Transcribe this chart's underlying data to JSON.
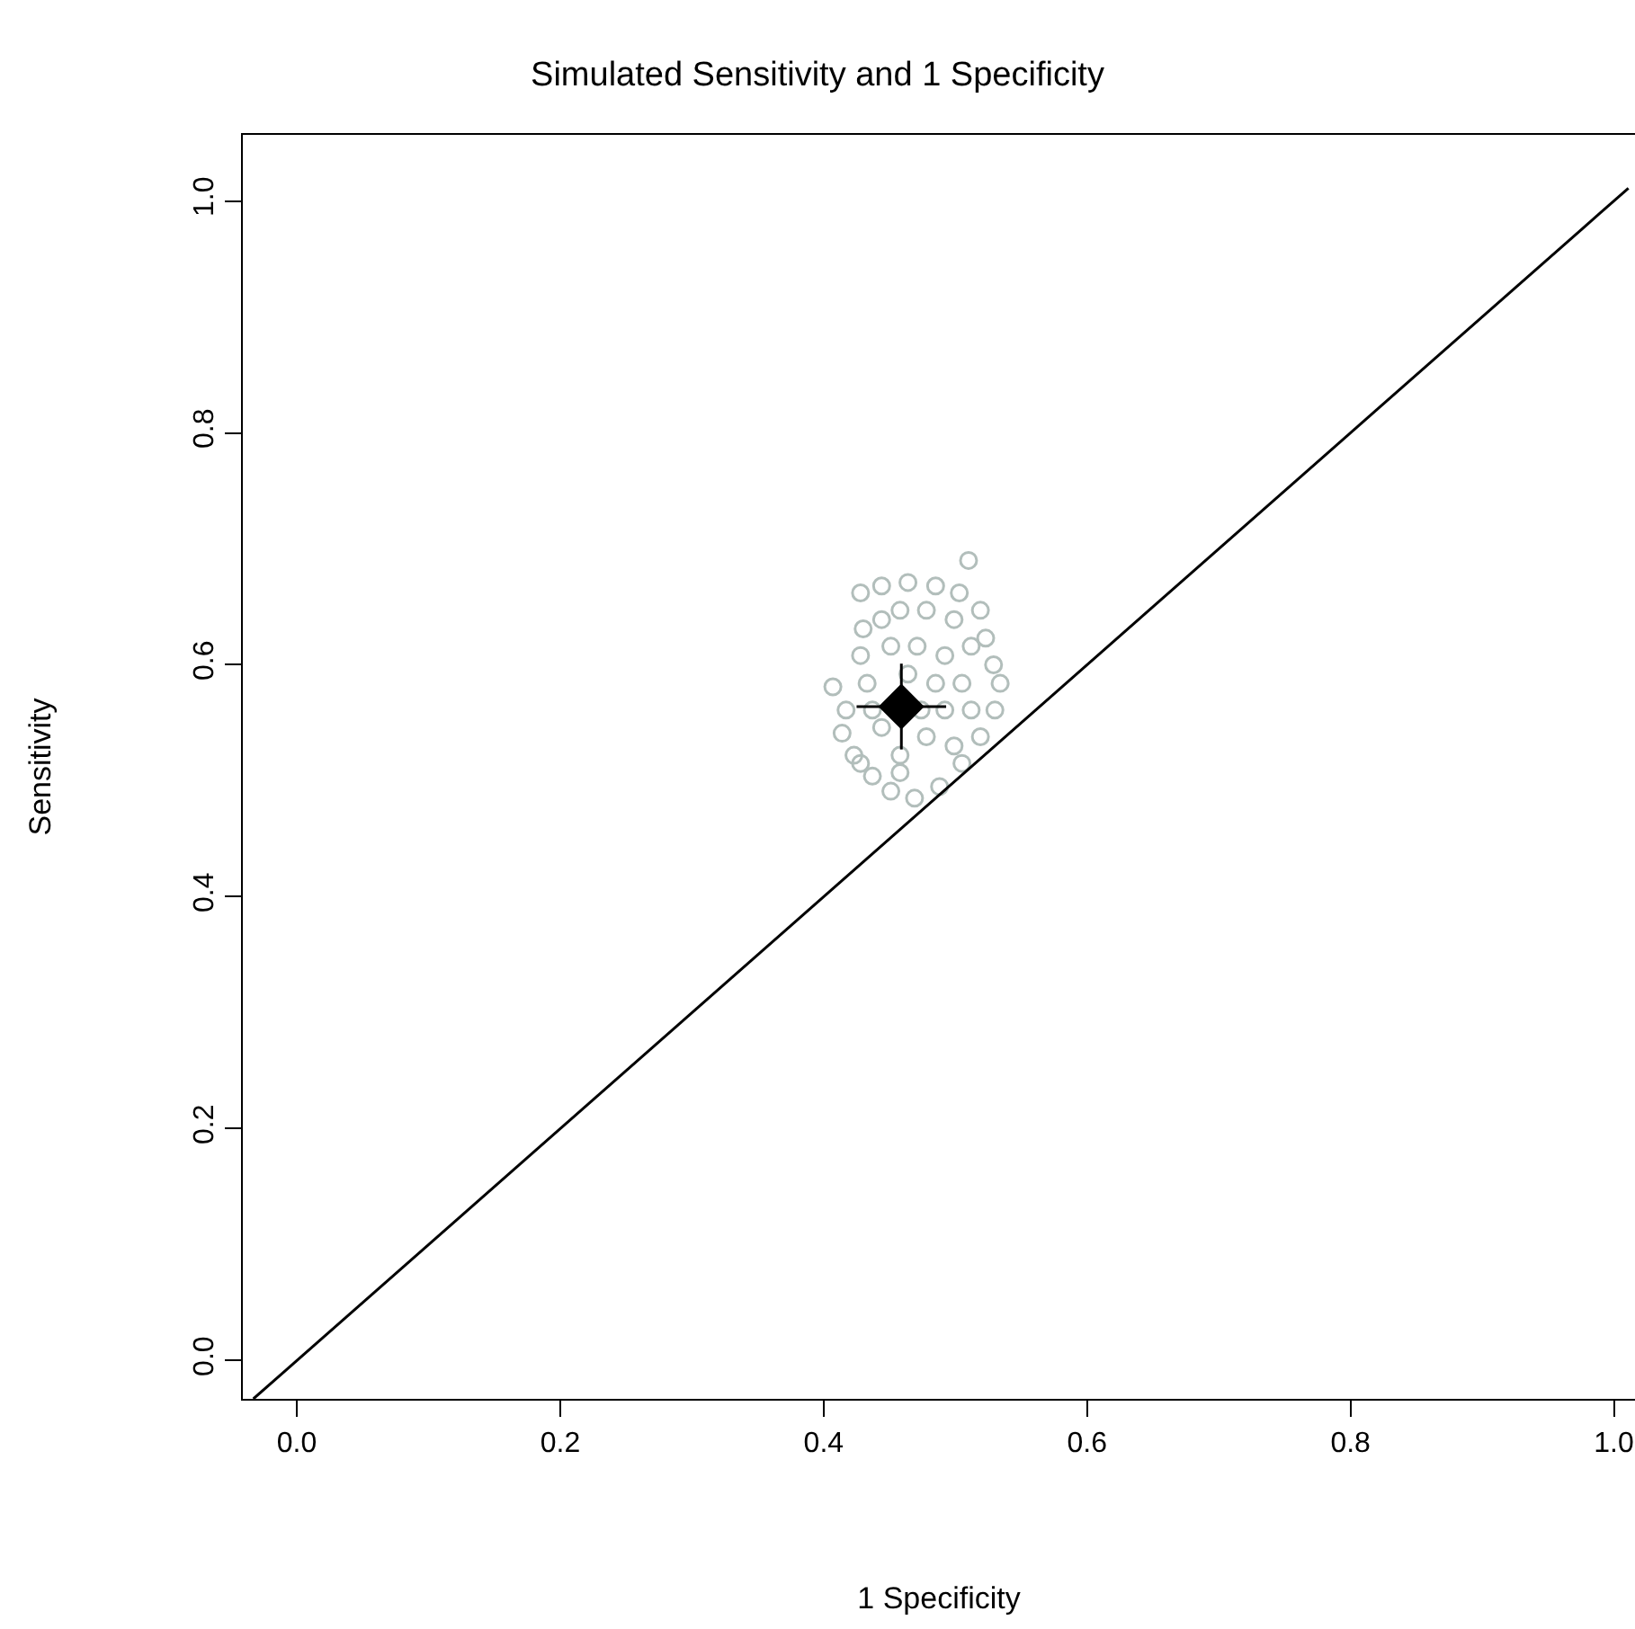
{
  "chart_data": {
    "type": "scatter",
    "title": "Simulated Sensitivity and 1 Specificity",
    "xlabel": "1 Specificity",
    "ylabel": "Sensitivity",
    "xlim": [
      -0.041,
      1.016
    ],
    "ylim": [
      -0.033,
      1.057
    ],
    "xticks": [
      {
        "value": 0,
        "label": "0.0"
      },
      {
        "value": 0.2,
        "label": "0.2"
      },
      {
        "value": 0.4,
        "label": "0.4"
      },
      {
        "value": 0.6,
        "label": "0.6"
      },
      {
        "value": 0.8,
        "label": "0.8"
      },
      {
        "value": 1.0,
        "label": "1.0"
      }
    ],
    "yticks": [
      {
        "value": 0,
        "label": "0.0"
      },
      {
        "value": 0.2,
        "label": "0.2"
      },
      {
        "value": 0.4,
        "label": "0.4"
      },
      {
        "value": 0.6,
        "label": "0.6"
      },
      {
        "value": 0.8,
        "label": "0.8"
      },
      {
        "value": 1.0,
        "label": "1.0"
      }
    ],
    "series": [
      {
        "marker": "circle",
        "color": "#b2bebb",
        "x": [
          0.51,
          0.428,
          0.444,
          0.464,
          0.485,
          0.503,
          0.519,
          0.523,
          0.529,
          0.534,
          0.53,
          0.519,
          0.505,
          0.488,
          0.469,
          0.451,
          0.437,
          0.423,
          0.414,
          0.407,
          0.417,
          0.43,
          0.428,
          0.433,
          0.444,
          0.458,
          0.478,
          0.499,
          0.512,
          0.505,
          0.492,
          0.478,
          0.458,
          0.444,
          0.451,
          0.471,
          0.492,
          0.485,
          0.464,
          0.512,
          0.499,
          0.437,
          0.474,
          0.458,
          0.428
        ],
        "values": [
          0.69,
          0.662,
          0.668,
          0.671,
          0.668,
          0.662,
          0.647,
          0.623,
          0.6,
          0.584,
          0.561,
          0.538,
          0.515,
          0.495,
          0.485,
          0.491,
          0.504,
          0.522,
          0.541,
          0.581,
          0.561,
          0.631,
          0.608,
          0.584,
          0.639,
          0.647,
          0.647,
          0.639,
          0.616,
          0.584,
          0.561,
          0.538,
          0.522,
          0.546,
          0.616,
          0.616,
          0.608,
          0.584,
          0.592,
          0.561,
          0.53,
          0.561,
          0.561,
          0.507,
          0.515
        ]
      },
      {
        "type": "line",
        "marker": "none",
        "color": "#000000",
        "x": [
          -0.033,
          1.011
        ],
        "values": [
          -0.033,
          1.011
        ]
      },
      {
        "marker": "diamond",
        "color": "#000000",
        "x": [
          0.459
        ],
        "values": [
          0.564
        ],
        "errors": [
          0.037
        ],
        "xerrors": [
          0.034
        ]
      }
    ]
  }
}
